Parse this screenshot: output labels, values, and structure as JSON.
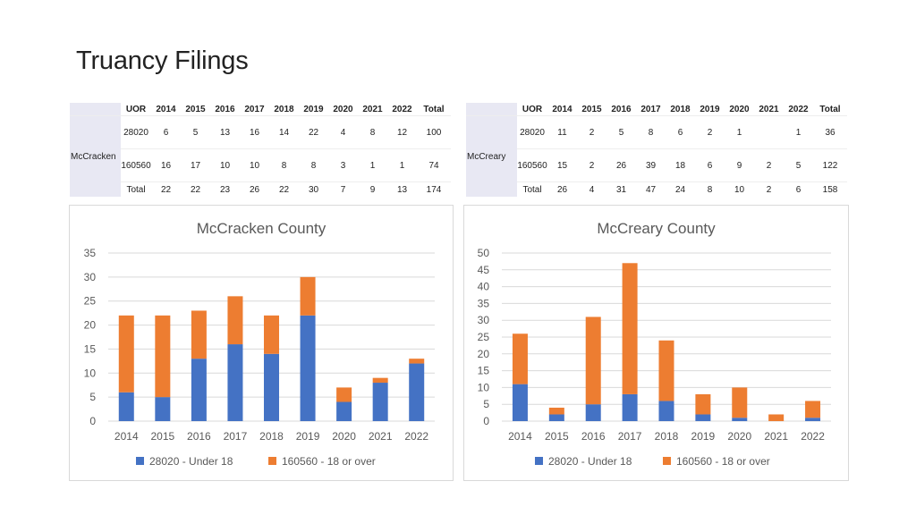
{
  "title": "Truancy Filings",
  "colors": {
    "under18": "#4472c4",
    "over18": "#ed7d31",
    "grid": "#d9d9d9",
    "table_header_bg": "#e8e8f3"
  },
  "tables": [
    {
      "county": "McCracken",
      "header": [
        "UOR",
        "2014",
        "2015",
        "2016",
        "2017",
        "2018",
        "2019",
        "2020",
        "2021",
        "2022",
        "Total"
      ],
      "rows": [
        [
          "28020",
          "6",
          "5",
          "13",
          "16",
          "14",
          "22",
          "4",
          "8",
          "12",
          "100"
        ],
        [
          "160560",
          "16",
          "17",
          "10",
          "10",
          "8",
          "8",
          "3",
          "1",
          "1",
          "74"
        ],
        [
          "Total",
          "22",
          "22",
          "23",
          "26",
          "22",
          "30",
          "7",
          "9",
          "13",
          "174"
        ]
      ]
    },
    {
      "county": "McCreary",
      "header": [
        "UOR",
        "2014",
        "2015",
        "2016",
        "2017",
        "2018",
        "2019",
        "2020",
        "2021",
        "2022",
        "Total"
      ],
      "rows": [
        [
          "28020",
          "11",
          "2",
          "5",
          "8",
          "6",
          "2",
          "1",
          "",
          "1",
          "36"
        ],
        [
          "160560",
          "15",
          "2",
          "26",
          "39",
          "18",
          "6",
          "9",
          "2",
          "5",
          "122"
        ],
        [
          "Total",
          "26",
          "4",
          "31",
          "47",
          "24",
          "8",
          "10",
          "2",
          "6",
          "158"
        ]
      ]
    }
  ],
  "chart_data": [
    {
      "type": "bar",
      "stacked": true,
      "title": "McCracken County",
      "categories": [
        "2014",
        "2015",
        "2016",
        "2017",
        "2018",
        "2019",
        "2020",
        "2021",
        "2022"
      ],
      "series": [
        {
          "name": "28020 - Under 18",
          "values": [
            6,
            5,
            13,
            16,
            14,
            22,
            4,
            8,
            12
          ]
        },
        {
          "name": "160560 - 18 or over",
          "values": [
            16,
            17,
            10,
            10,
            8,
            8,
            3,
            1,
            1
          ]
        }
      ],
      "ylim": [
        0,
        35
      ],
      "yticks": [
        0,
        5,
        10,
        15,
        20,
        25,
        30,
        35
      ],
      "grid": true,
      "legend": "bottom"
    },
    {
      "type": "bar",
      "stacked": true,
      "title": "McCreary County",
      "categories": [
        "2014",
        "2015",
        "2016",
        "2017",
        "2018",
        "2019",
        "2020",
        "2021",
        "2022"
      ],
      "series": [
        {
          "name": "28020 - Under 18",
          "values": [
            11,
            2,
            5,
            8,
            6,
            2,
            1,
            0,
            1
          ]
        },
        {
          "name": "160560 - 18 or over",
          "values": [
            15,
            2,
            26,
            39,
            18,
            6,
            9,
            2,
            5
          ]
        }
      ],
      "ylim": [
        0,
        50
      ],
      "yticks": [
        0,
        5,
        10,
        15,
        20,
        25,
        30,
        35,
        40,
        45,
        50
      ],
      "grid": true,
      "legend": "bottom"
    }
  ]
}
